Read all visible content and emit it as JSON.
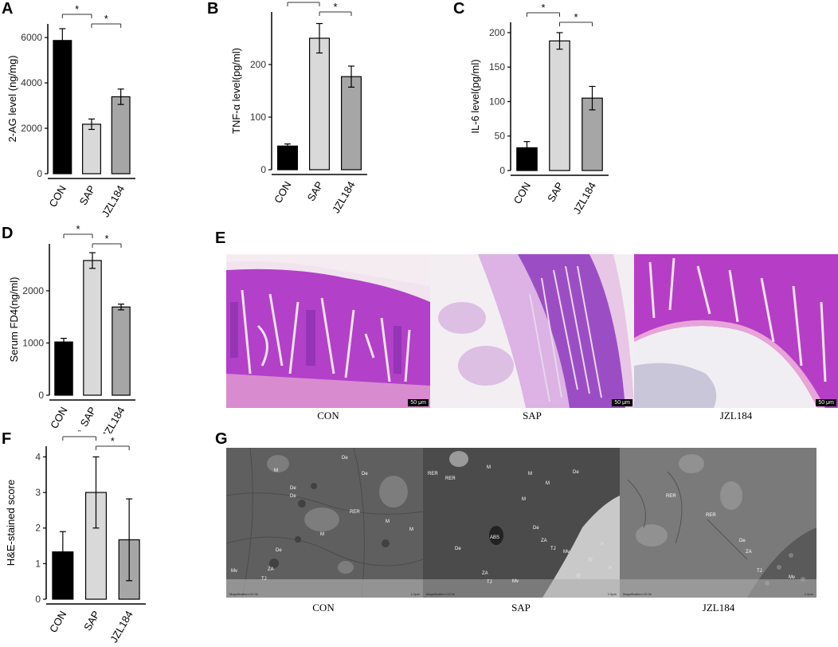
{
  "panel_labels": {
    "A": "A",
    "B": "B",
    "C": "C",
    "D": "D",
    "E": "E",
    "F": "F",
    "G": "G"
  },
  "sig_marker": "*",
  "chart_data": [
    {
      "id": "A",
      "type": "bar",
      "categories": [
        "CON",
        "SAP",
        "JZL184"
      ],
      "values": [
        5870,
        2180,
        3390
      ],
      "errors": [
        520,
        230,
        340
      ],
      "ylabel": "2-AG level (ng/mg)",
      "ylim": [
        0,
        6600
      ],
      "yticks": [
        0,
        2000,
        4000,
        6000
      ],
      "colors": [
        "#000000",
        "#d9d9d9",
        "#a6a6a6"
      ],
      "significance": [
        [
          "CON",
          "SAP"
        ],
        [
          "SAP",
          "JZL184"
        ]
      ]
    },
    {
      "id": "B",
      "type": "bar",
      "categories": [
        "CON",
        "SAP",
        "JZL184"
      ],
      "values": [
        45,
        250,
        177
      ],
      "errors": [
        4,
        28,
        20
      ],
      "ylabel": "TNF-α level(pg/ml)",
      "ylim": [
        0,
        300
      ],
      "yticks": [
        0,
        100,
        200
      ],
      "colors": [
        "#000000",
        "#d9d9d9",
        "#a6a6a6"
      ],
      "significance": [
        [
          "CON",
          "SAP"
        ],
        [
          "SAP",
          "JZL184"
        ]
      ]
    },
    {
      "id": "C",
      "type": "bar",
      "categories": [
        "CON",
        "SAP",
        "JZL184"
      ],
      "values": [
        33,
        188,
        105
      ],
      "errors": [
        9,
        12,
        17
      ],
      "ylabel": "IL-6 level(pg/ml)",
      "ylim": [
        0,
        215
      ],
      "yticks": [
        0,
        50,
        100,
        150,
        200
      ],
      "colors": [
        "#000000",
        "#d9d9d9",
        "#a6a6a6"
      ],
      "significance": [
        [
          "CON",
          "SAP"
        ],
        [
          "SAP",
          "JZL184"
        ]
      ]
    },
    {
      "id": "D",
      "type": "bar",
      "categories": [
        "CON",
        "SAP",
        "JZL184"
      ],
      "values": [
        1020,
        2580,
        1690
      ],
      "errors": [
        70,
        150,
        55
      ],
      "ylabel": "Serum FD4(ng/ml)",
      "ylim": [
        0,
        2900
      ],
      "yticks": [
        0,
        1000,
        2000
      ],
      "colors": [
        "#000000",
        "#d9d9d9",
        "#a6a6a6"
      ],
      "significance": [
        [
          "CON",
          "SAP"
        ],
        [
          "SAP",
          "JZL184"
        ]
      ]
    },
    {
      "id": "F",
      "type": "bar",
      "categories": [
        "CON",
        "SAP",
        "JZL184"
      ],
      "values": [
        1.33,
        3.0,
        1.67
      ],
      "errors": [
        0.57,
        1.0,
        1.15
      ],
      "ylabel": "H&E-stained score",
      "ylim": [
        0,
        4.3
      ],
      "yticks": [
        0,
        1,
        2,
        3,
        4
      ],
      "colors": [
        "#000000",
        "#d9d9d9",
        "#a6a6a6"
      ],
      "significance": [
        [
          "CON",
          "SAP"
        ],
        [
          "SAP",
          "JZL184"
        ]
      ]
    }
  ],
  "histology": {
    "captions": [
      "CON",
      "SAP",
      "JZL184"
    ],
    "scale_bar": "50 μm",
    "colors": {
      "tissue": "#b33cc8",
      "tissue_light": "#d8a6e6",
      "background": "#f2e6ee"
    }
  },
  "tem": {
    "captions": [
      "CON",
      "SAP",
      "JZL184"
    ],
    "labels_con": [
      "M",
      "De",
      "De",
      "De",
      "De",
      "RER",
      "M",
      "De",
      "ZA",
      "TJ",
      "Mv",
      "M",
      "M"
    ],
    "labels_sap": [
      "RER",
      "RER",
      "M",
      "M",
      "M",
      "M",
      "De",
      "De",
      "ABS",
      "ZA",
      "TJ",
      "Mv",
      "De",
      "ZA",
      "TJ",
      "Mv"
    ],
    "labels_jzl": [
      "RER",
      "De",
      "ZA",
      "TJ",
      "Mv",
      "RER"
    ],
    "mag_text": "Magnification=12.0k",
    "scale_text": "1.0μm"
  }
}
